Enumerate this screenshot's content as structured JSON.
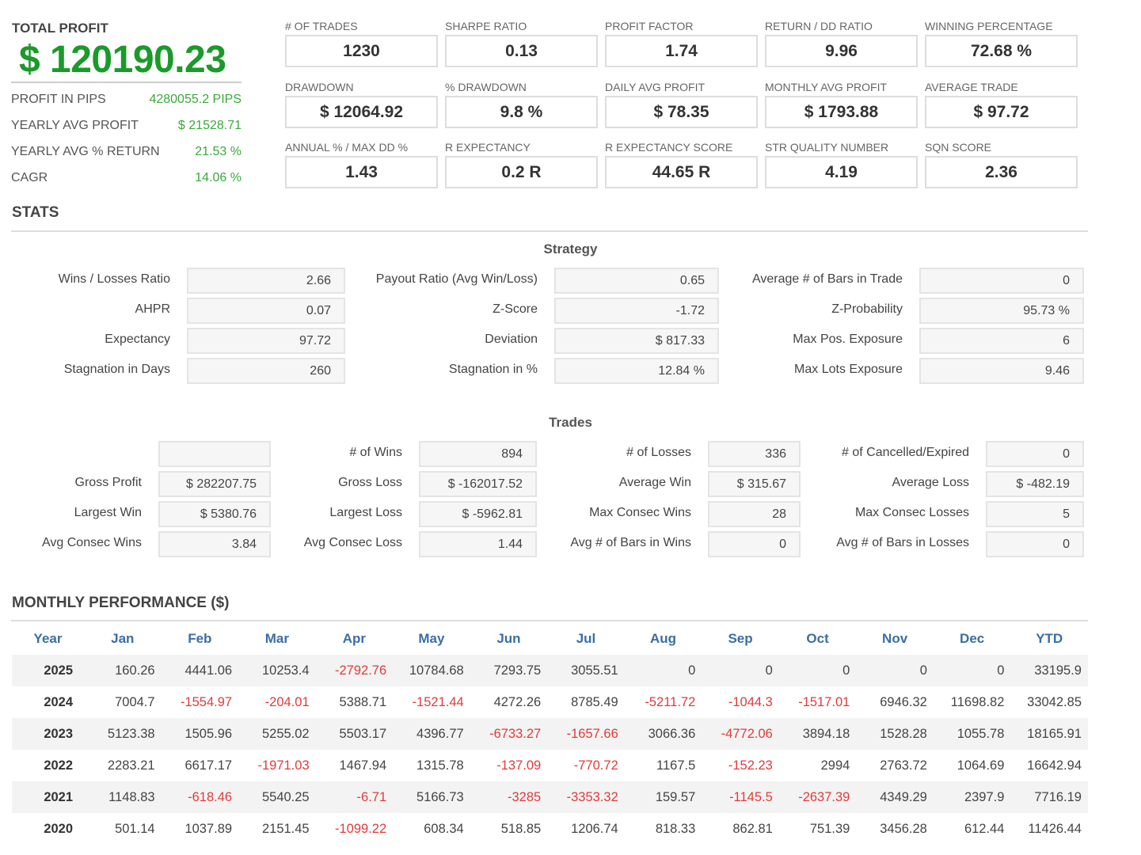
{
  "summary": {
    "total_profit_label": "TOTAL PROFIT",
    "total_profit": "$ 120190.23",
    "rows": [
      {
        "label": "PROFIT IN PIPS",
        "value": "4280055.2 PIPS"
      },
      {
        "label": "YEARLY AVG PROFIT",
        "value": "$ 21528.71"
      },
      {
        "label": "YEARLY AVG % RETURN",
        "value": "21.53 %"
      },
      {
        "label": "CAGR",
        "value": "14.06 %"
      }
    ]
  },
  "metrics": [
    {
      "label": "# OF TRADES",
      "value": "1230"
    },
    {
      "label": "SHARPE RATIO",
      "value": "0.13"
    },
    {
      "label": "PROFIT FACTOR",
      "value": "1.74"
    },
    {
      "label": "RETURN / DD RATIO",
      "value": "9.96"
    },
    {
      "label": "WINNING PERCENTAGE",
      "value": "72.68 %"
    },
    {
      "label": "DRAWDOWN",
      "value": "$ 12064.92"
    },
    {
      "label": "% DRAWDOWN",
      "value": "9.8 %"
    },
    {
      "label": "DAILY AVG PROFIT",
      "value": "$ 78.35"
    },
    {
      "label": "MONTHLY AVG PROFIT",
      "value": "$ 1793.88"
    },
    {
      "label": "AVERAGE TRADE",
      "value": "$ 97.72"
    },
    {
      "label": "ANNUAL % / MAX DD %",
      "value": "1.43"
    },
    {
      "label": "R EXPECTANCY",
      "value": "0.2 R"
    },
    {
      "label": "R EXPECTANCY SCORE",
      "value": "44.65 R"
    },
    {
      "label": "STR QUALITY NUMBER",
      "value": "4.19"
    },
    {
      "label": "SQN SCORE",
      "value": "2.36"
    }
  ],
  "stats_title": "STATS",
  "strategy": {
    "title": "Strategy",
    "rows": [
      [
        {
          "label": "Wins / Losses Ratio",
          "value": "2.66"
        },
        {
          "label": "Payout Ratio (Avg Win/Loss)",
          "value": "0.65"
        },
        {
          "label": "Average # of Bars in Trade",
          "value": "0"
        }
      ],
      [
        {
          "label": "AHPR",
          "value": "0.07"
        },
        {
          "label": "Z-Score",
          "value": "-1.72"
        },
        {
          "label": "Z-Probability",
          "value": "95.73 %"
        }
      ],
      [
        {
          "label": "Expectancy",
          "value": "97.72"
        },
        {
          "label": "Deviation",
          "value": "$ 817.33"
        },
        {
          "label": "Max Pos. Exposure",
          "value": "6"
        }
      ],
      [
        {
          "label": "Stagnation in Days",
          "value": "260"
        },
        {
          "label": "Stagnation in %",
          "value": "12.84 %"
        },
        {
          "label": "Max Lots Exposure",
          "value": "9.46"
        }
      ]
    ]
  },
  "trades": {
    "title": "Trades",
    "rows": [
      [
        {
          "label": "",
          "value": ""
        },
        {
          "label": "# of Wins",
          "value": "894"
        },
        {
          "label": "# of Losses",
          "value": "336"
        },
        {
          "label": "# of Cancelled/Expired",
          "value": "0"
        }
      ],
      [
        {
          "label": "Gross Profit",
          "value": "$ 282207.75"
        },
        {
          "label": "Gross Loss",
          "value": "$ -162017.52"
        },
        {
          "label": "Average Win",
          "value": "$ 315.67"
        },
        {
          "label": "Average Loss",
          "value": "$ -482.19"
        }
      ],
      [
        {
          "label": "Largest Win",
          "value": "$ 5380.76"
        },
        {
          "label": "Largest Loss",
          "value": "$ -5962.81"
        },
        {
          "label": "Max Consec Wins",
          "value": "28"
        },
        {
          "label": "Max Consec Losses",
          "value": "5"
        }
      ],
      [
        {
          "label": "Avg Consec Wins",
          "value": "3.84"
        },
        {
          "label": "Avg Consec Loss",
          "value": "1.44"
        },
        {
          "label": "Avg # of Bars in Wins",
          "value": "0"
        },
        {
          "label": "Avg # of Bars in Losses",
          "value": "0"
        }
      ]
    ]
  },
  "monthly": {
    "title": "MONTHLY PERFORMANCE ($)",
    "headers": [
      "Year",
      "Jan",
      "Feb",
      "Mar",
      "Apr",
      "May",
      "Jun",
      "Jul",
      "Aug",
      "Sep",
      "Oct",
      "Nov",
      "Dec",
      "YTD"
    ],
    "rows": [
      [
        "2025",
        "160.26",
        "4441.06",
        "10253.4",
        "-2792.76",
        "10784.68",
        "7293.75",
        "3055.51",
        "0",
        "0",
        "0",
        "0",
        "0",
        "33195.9"
      ],
      [
        "2024",
        "7004.7",
        "-1554.97",
        "-204.01",
        "5388.71",
        "-1521.44",
        "4272.26",
        "8785.49",
        "-5211.72",
        "-1044.3",
        "-1517.01",
        "6946.32",
        "11698.82",
        "33042.85"
      ],
      [
        "2023",
        "5123.38",
        "1505.96",
        "5255.02",
        "5503.17",
        "4396.77",
        "-6733.27",
        "-1657.66",
        "3066.36",
        "-4772.06",
        "3894.18",
        "1528.28",
        "1055.78",
        "18165.91"
      ],
      [
        "2022",
        "2283.21",
        "6617.17",
        "-1971.03",
        "1467.94",
        "1315.78",
        "-137.09",
        "-770.72",
        "1167.5",
        "-152.23",
        "2994",
        "2763.72",
        "1064.69",
        "16642.94"
      ],
      [
        "2021",
        "1148.83",
        "-618.46",
        "5540.25",
        "-6.71",
        "5166.73",
        "-3285",
        "-3353.32",
        "159.57",
        "-1145.5",
        "-2637.39",
        "4349.29",
        "2397.9",
        "7716.19"
      ],
      [
        "2020",
        "501.14",
        "1037.89",
        "2151.45",
        "-1099.22",
        "608.34",
        "518.85",
        "1206.74",
        "818.33",
        "862.81",
        "751.39",
        "3456.28",
        "612.44",
        "11426.44"
      ]
    ]
  },
  "colors": {
    "profit": "#1a9a2a",
    "negative": "#e03b3b",
    "header": "#3a6ea5"
  }
}
